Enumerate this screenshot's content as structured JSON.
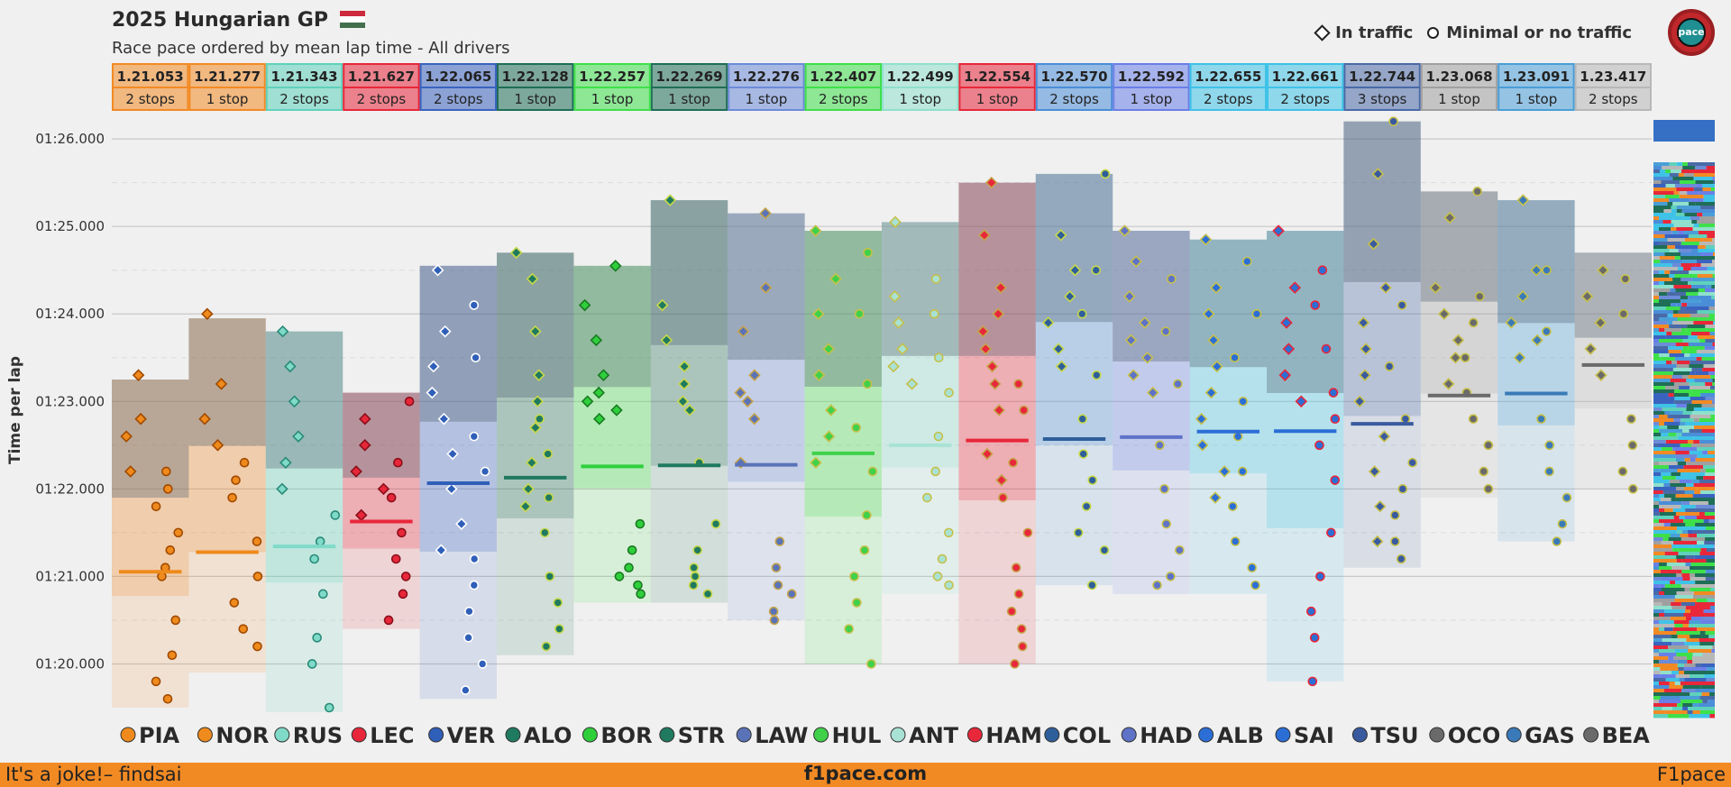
{
  "header": {
    "title": "2025 Hungarian GP",
    "subtitle": "Race pace ordered by mean lap time - All drivers",
    "flag_colors": [
      "#cd2a3e",
      "#ffffff",
      "#436f4d"
    ]
  },
  "legend": {
    "in_traffic": "In traffic",
    "no_traffic": "Minimal or no traffic"
  },
  "footer": {
    "left": "It's a joke!– findsai",
    "center": "f1pace.com",
    "right": "F1pace",
    "color": "#f28a24"
  },
  "logo": {
    "text": "pace"
  },
  "chart_data": {
    "type": "scatter",
    "ylabel": "Time per lap",
    "y_ticks": [
      "01:20.000",
      "01:21.000",
      "01:22.000",
      "01:23.000",
      "01:24.000",
      "01:25.000",
      "01:26.000"
    ],
    "y_tick_values": [
      80,
      81,
      82,
      83,
      84,
      85,
      86
    ],
    "ylim": [
      79.5,
      86.3
    ],
    "grid": true,
    "drivers": [
      {
        "code": "PIA",
        "mean_label": "1.21.053",
        "mean": 81.053,
        "stops": "2 stops",
        "color": "#f28a24",
        "dot": "#ef8a1c",
        "edge": "#a04a00",
        "stints": [
          {
            "min": 79.5,
            "max": 83.25,
            "traffic": [
              83.3,
              82.8,
              82.6,
              82.2
            ],
            "clean": [
              82.2,
              82.0,
              81.8,
              81.5,
              81.3,
              81.1,
              81.0,
              80.5,
              80.1,
              79.8,
              79.6
            ]
          }
        ]
      },
      {
        "code": "NOR",
        "mean_label": "1.21.277",
        "mean": 81.277,
        "stops": "1 stop",
        "color": "#f28a24",
        "dot": "#ef8a1c",
        "edge": "#a04a00",
        "stints": [
          {
            "min": 79.9,
            "max": 83.95,
            "traffic": [
              84.0,
              83.2,
              82.8,
              82.5
            ],
            "clean": [
              82.3,
              82.1,
              81.9,
              81.4,
              81.0,
              80.7,
              80.4,
              80.2
            ]
          }
        ]
      },
      {
        "code": "RUS",
        "mean_label": "1.21.343",
        "mean": 81.343,
        "stops": "2 stops",
        "color": "#5fd1bb",
        "dot": "#7fdac8",
        "edge": "#2a8a78",
        "stints": [
          {
            "min": 79.45,
            "max": 83.8,
            "traffic": [
              83.8,
              83.4,
              83.0,
              82.6,
              82.3,
              82.0
            ],
            "clean": [
              81.7,
              81.4,
              81.2,
              80.8,
              80.3,
              80.0,
              79.5
            ]
          }
        ]
      },
      {
        "code": "LEC",
        "mean_label": "1.21.627",
        "mean": 81.627,
        "stops": "2 stops",
        "color": "#e8273a",
        "dot": "#e8273a",
        "edge": "#8a0f1a",
        "stints": [
          {
            "min": 80.4,
            "max": 83.1,
            "traffic": [
              82.8,
              82.5,
              82.2,
              82.0,
              81.7
            ],
            "clean": [
              83.0,
              82.3,
              81.9,
              81.5,
              81.2,
              81.0,
              80.8,
              80.5
            ]
          }
        ]
      },
      {
        "code": "VER",
        "mean_label": "1.22.065",
        "mean": 82.065,
        "stops": "2 stops",
        "color": "#3a63bf",
        "dot": "#2f5fb8",
        "edge": "#ffffff",
        "stints": [
          {
            "min": 79.6,
            "max": 84.55,
            "traffic": [
              84.5,
              83.8,
              83.4,
              83.1,
              82.8,
              82.4,
              82.0,
              81.6,
              81.3
            ],
            "clean": [
              84.1,
              83.5,
              82.6,
              82.2,
              81.2,
              80.9,
              80.6,
              80.3,
              80.0,
              79.7
            ]
          }
        ]
      },
      {
        "code": "ALO",
        "mean_label": "1.22.128",
        "mean": 82.128,
        "stops": "1 stop",
        "color": "#1f6e57",
        "dot": "#1f7a5f",
        "edge": "#c6d84a",
        "stints": [
          {
            "min": 80.1,
            "max": 84.7,
            "traffic": [
              84.7,
              84.4,
              83.8,
              83.3,
              83.0,
              82.7,
              82.3,
              82.0,
              81.8
            ],
            "clean": [
              82.8,
              82.4,
              81.9,
              81.5,
              81.0,
              80.7,
              80.4,
              80.2
            ]
          }
        ]
      },
      {
        "code": "BOR",
        "mean_label": "1.22.257",
        "mean": 82.257,
        "stops": "1 stop",
        "color": "#3ee04a",
        "dot": "#2fcf3c",
        "edge": "#1a7a22",
        "stints": [
          {
            "min": 80.7,
            "max": 84.55,
            "traffic": [
              84.55,
              84.1,
              83.7,
              83.3,
              83.1,
              83.0,
              82.9,
              82.8
            ],
            "clean": [
              81.6,
              81.3,
              81.1,
              81.0,
              80.9,
              80.8
            ]
          }
        ]
      },
      {
        "code": "STR",
        "mean_label": "1.22.269",
        "mean": 82.269,
        "stops": "1 stop",
        "color": "#1f6e57",
        "dot": "#1f7a5f",
        "edge": "#c6d84a",
        "stints": [
          {
            "min": 80.7,
            "max": 85.3,
            "traffic": [
              85.3,
              84.1,
              83.7,
              83.4,
              83.2,
              83.0,
              82.9
            ],
            "clean": [
              82.3,
              81.6,
              81.3,
              81.1,
              81.0,
              80.9,
              80.8
            ]
          }
        ]
      },
      {
        "code": "LAW",
        "mean_label": "1.22.276",
        "mean": 82.276,
        "stops": "1 stop",
        "color": "#6c8bd8",
        "dot": "#5a73b8",
        "edge": "#c6a34a",
        "stints": [
          {
            "min": 80.5,
            "max": 85.15,
            "traffic": [
              85.15,
              84.3,
              83.8,
              83.3,
              83.1,
              83.0,
              82.8,
              82.3
            ],
            "clean": [
              81.4,
              81.1,
              80.9,
              80.8,
              80.6,
              80.5
            ]
          }
        ]
      },
      {
        "code": "HUL",
        "mean_label": "1.22.407",
        "mean": 82.407,
        "stops": "2 stops",
        "color": "#3ee04a",
        "dot": "#3fd14a",
        "edge": "#c6c04a",
        "stints": [
          {
            "min": 80.0,
            "max": 84.95,
            "traffic": [
              84.95,
              84.4,
              84.0,
              83.6,
              83.3,
              82.9,
              82.6,
              82.3
            ],
            "clean": [
              84.7,
              84.0,
              83.2,
              82.7,
              82.2,
              81.7,
              81.3,
              81.0,
              80.7,
              80.4,
              80.0
            ]
          }
        ]
      },
      {
        "code": "ANT",
        "mean_label": "1.22.499",
        "mean": 82.499,
        "stops": "1 stop",
        "color": "#8fe0cc",
        "dot": "#a8e2d4",
        "edge": "#c6c04a",
        "stints": [
          {
            "min": 80.8,
            "max": 85.05,
            "traffic": [
              85.05,
              84.2,
              83.9,
              83.6,
              83.4,
              83.2
            ],
            "clean": [
              84.4,
              84.0,
              83.5,
              83.1,
              82.6,
              82.2,
              81.9,
              81.5,
              81.2,
              81.0,
              80.9
            ]
          }
        ]
      },
      {
        "code": "HAM",
        "mean_label": "1.22.554",
        "mean": 82.554,
        "stops": "1 stop",
        "color": "#e8273a",
        "dot": "#e8273a",
        "edge": "#c6a34a",
        "stints": [
          {
            "min": 80.0,
            "max": 85.5,
            "traffic": [
              85.5,
              84.9,
              84.3,
              84.0,
              83.8,
              83.6,
              83.4,
              83.2,
              82.9,
              82.4,
              82.1
            ],
            "clean": [
              83.2,
              82.9,
              82.3,
              81.9,
              81.5,
              81.1,
              80.8,
              80.6,
              80.4,
              80.2,
              80.0
            ]
          }
        ]
      },
      {
        "code": "COL",
        "mean_label": "1.22.570",
        "mean": 82.57,
        "stops": "2 stops",
        "color": "#4a8ed8",
        "dot": "#2f5f9a",
        "edge": "#c6d84a",
        "stints": [
          {
            "min": 80.9,
            "max": 85.6,
            "traffic": [
              84.9,
              84.5,
              84.2,
              83.9,
              83.6,
              83.4
            ],
            "clean": [
              85.6,
              84.5,
              84.0,
              83.3,
              82.8,
              82.4,
              82.1,
              81.8,
              81.5,
              81.3,
              80.9
            ]
          }
        ]
      },
      {
        "code": "HAD",
        "mean_label": "1.22.592",
        "mean": 82.592,
        "stops": "1 stop",
        "color": "#6a7fe8",
        "dot": "#5e72c8",
        "edge": "#c6c04a",
        "stints": [
          {
            "min": 80.8,
            "max": 84.95,
            "traffic": [
              84.95,
              84.6,
              84.2,
              83.9,
              83.7,
              83.5,
              83.3,
              83.1
            ],
            "clean": [
              84.4,
              83.8,
              83.2,
              82.5,
              82.0,
              81.6,
              81.3,
              81.0,
              80.9
            ]
          }
        ]
      },
      {
        "code": "ALB",
        "mean_label": "1.22.655",
        "mean": 82.655,
        "stops": "2 stops",
        "color": "#3fc2e8",
        "dot": "#2b6ed6",
        "edge": "#c6c04a",
        "stints": [
          {
            "min": 80.8,
            "max": 84.85,
            "traffic": [
              84.85,
              84.3,
              84.0,
              83.7,
              83.4,
              83.1,
              82.8,
              82.5,
              82.2,
              81.9
            ],
            "clean": [
              84.6,
              84.0,
              83.5,
              83.0,
              82.6,
              82.2,
              81.8,
              81.4,
              81.1,
              80.9
            ]
          }
        ]
      },
      {
        "code": "SAI",
        "mean_label": "1.22.661",
        "mean": 82.661,
        "stops": "2 stops",
        "color": "#3fc2e8",
        "dot": "#2b6ed6",
        "edge": "#e8273a",
        "stints": [
          {
            "min": 79.8,
            "max": 84.95,
            "traffic": [
              84.95,
              84.3,
              83.9,
              83.6,
              83.3,
              83.0
            ],
            "clean": [
              84.5,
              84.1,
              83.6,
              83.1,
              82.8,
              82.5,
              82.1,
              81.5,
              81.0,
              80.6,
              80.3,
              79.8
            ]
          }
        ]
      },
      {
        "code": "TSU",
        "mean_label": "1.22.744",
        "mean": 82.744,
        "stops": "3 stops",
        "color": "#4a6aa8",
        "dot": "#3a5aa0",
        "edge": "#c6c04a",
        "stints": [
          {
            "min": 81.1,
            "max": 86.2,
            "traffic": [
              85.6,
              84.8,
              84.3,
              83.9,
              83.6,
              83.3,
              83.0,
              82.6,
              82.2,
              81.8,
              81.4
            ],
            "clean": [
              86.2,
              84.1,
              83.4,
              82.8,
              82.3,
              82.0,
              81.7,
              81.4,
              81.2
            ]
          }
        ]
      },
      {
        "code": "OCO",
        "mean_label": "1.23.068",
        "mean": 83.068,
        "stops": "1 stop",
        "color": "#a0a0a0",
        "dot": "#6a6a6a",
        "edge": "#c6c04a",
        "stints": [
          {
            "min": 81.9,
            "max": 85.4,
            "traffic": [
              85.1,
              84.3,
              84.0,
              83.7,
              83.5,
              83.2
            ],
            "clean": [
              85.4,
              84.2,
              83.9,
              83.5,
              83.1,
              82.8,
              82.5,
              82.2,
              82.0
            ]
          }
        ]
      },
      {
        "code": "GAS",
        "mean_label": "1.23.091",
        "mean": 83.091,
        "stops": "1 stop",
        "color": "#4a9ed8",
        "dot": "#3a7ab8",
        "edge": "#c6c04a",
        "stints": [
          {
            "min": 81.4,
            "max": 85.3,
            "traffic": [
              85.3,
              84.5,
              84.2,
              83.9,
              83.7,
              83.5
            ],
            "clean": [
              84.5,
              83.8,
              82.8,
              82.5,
              82.2,
              81.9,
              81.6,
              81.4
            ]
          }
        ]
      },
      {
        "code": "BEA",
        "mean_label": "1.23.417",
        "mean": 83.417,
        "stops": "2 stops",
        "color": "#b8b8b8",
        "dot": "#6a6a6a",
        "edge": "#c6c04a",
        "stints": [
          {
            "min": 82.0,
            "max": 84.7,
            "traffic": [
              84.5,
              84.2,
              83.9,
              83.6,
              83.3
            ],
            "clean": [
              84.4,
              84.0,
              82.8,
              82.5,
              82.2,
              82.0
            ]
          }
        ]
      }
    ]
  }
}
